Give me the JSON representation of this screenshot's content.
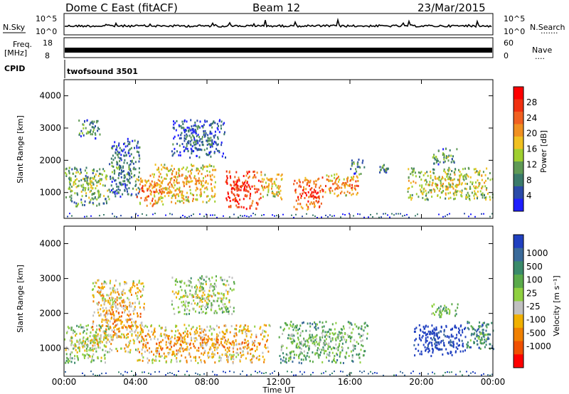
{
  "header": {
    "title": "Dome C East (fitACF)",
    "beam": "Beam 12",
    "date": "23/Mar/2015"
  },
  "sky_panel": {
    "left_label": "N.Sky",
    "left_ticks": [
      "10^5",
      "10^0"
    ],
    "right_ticks": [
      "10^5",
      "10^0"
    ],
    "right_label": "N.Search",
    "right_dots": "·······"
  },
  "freq_panel": {
    "left_label_1": "Freq.",
    "left_label_2": "[MHz]",
    "left_ticks": [
      "18",
      "8"
    ],
    "right_ticks": [
      "60",
      "0"
    ],
    "right_label": "Nave",
    "right_dots": "····"
  },
  "cpid": {
    "label": "CPID",
    "value": "twofsound 3501"
  },
  "chart_data": [
    {
      "type": "heatmap",
      "name": "power",
      "ylabel": "Slant Range [km]",
      "xlabel": "Time UT",
      "xlim": [
        0,
        24
      ],
      "ylim": [
        200,
        4500
      ],
      "x_ticks": [
        "00:00",
        "04:00",
        "08:00",
        "12:00",
        "16:00",
        "20:00",
        "00:00"
      ],
      "y_ticks": [
        1000,
        2000,
        3000,
        4000
      ],
      "colorbar": {
        "label": "Power [dB]",
        "ticks": [
          "4",
          "8",
          "12",
          "16",
          "20",
          "24",
          "28"
        ],
        "colors": [
          "#1e1eff",
          "#2a4aa8",
          "#3a7a6a",
          "#5f9a55",
          "#9fcf30",
          "#f0c020",
          "#f09020",
          "#f06020",
          "#f03010",
          "#ff0000"
        ]
      },
      "regions": [
        {
          "t": [
            0.0,
            2.5
          ],
          "r": [
            600,
            1800
          ],
          "level": 0.45
        },
        {
          "t": [
            0.8,
            2.0
          ],
          "r": [
            2700,
            3300
          ],
          "level": 0.35
        },
        {
          "t": [
            2.5,
            4.2
          ],
          "r": [
            900,
            2700
          ],
          "level": 0.3
        },
        {
          "t": [
            4.0,
            5.5
          ],
          "r": [
            600,
            1600
          ],
          "level": 0.75
        },
        {
          "t": [
            5.0,
            8.5
          ],
          "r": [
            700,
            1900
          ],
          "level": 0.65
        },
        {
          "t": [
            6.0,
            9.0
          ],
          "r": [
            2100,
            3300
          ],
          "level": 0.25
        },
        {
          "t": [
            9.0,
            11.0
          ],
          "r": [
            500,
            1700
          ],
          "level": 0.9
        },
        {
          "t": [
            11.0,
            12.2
          ],
          "r": [
            800,
            1600
          ],
          "level": 0.6
        },
        {
          "t": [
            12.8,
            14.5
          ],
          "r": [
            500,
            1500
          ],
          "level": 0.85
        },
        {
          "t": [
            14.5,
            16.5
          ],
          "r": [
            900,
            1600
          ],
          "level": 0.7
        },
        {
          "t": [
            16.0,
            16.8
          ],
          "r": [
            1600,
            2100
          ],
          "level": 0.3
        },
        {
          "t": [
            17.5,
            18.2
          ],
          "r": [
            1600,
            1900
          ],
          "level": 0.35
        },
        {
          "t": [
            19.2,
            24.0
          ],
          "r": [
            800,
            1800
          ],
          "level": 0.55
        },
        {
          "t": [
            20.5,
            22.0
          ],
          "r": [
            1900,
            2400
          ],
          "level": 0.35
        }
      ]
    },
    {
      "type": "heatmap",
      "name": "velocity",
      "ylabel": "Slant Range [km]",
      "xlabel": "Time UT",
      "xlim": [
        0,
        24
      ],
      "ylim": [
        200,
        4500
      ],
      "x_ticks": [
        "00:00",
        "04:00",
        "08:00",
        "12:00",
        "16:00",
        "20:00",
        "00:00"
      ],
      "y_ticks": [
        1000,
        2000,
        3000,
        4000
      ],
      "colorbar": {
        "label": "Velocity [m s⁻¹]",
        "ticks": [
          "1000",
          "500",
          "100",
          "25",
          "-25",
          "-100",
          "-500",
          "-1000"
        ],
        "colors": [
          "#2040c0",
          "#3a6a9a",
          "#3a8a6a",
          "#5aaa4a",
          "#8fd040",
          "#c0c0c0",
          "#f0b000",
          "#f08000",
          "#f05000",
          "#ff0000"
        ]
      },
      "regions": [
        {
          "t": [
            0.0,
            2.5
          ],
          "r": [
            600,
            1700
          ],
          "level": 0.55
        },
        {
          "t": [
            1.5,
            4.5
          ],
          "r": [
            900,
            3000
          ],
          "level": 0.7
        },
        {
          "t": [
            4.0,
            11.5
          ],
          "r": [
            600,
            1700
          ],
          "level": 0.72
        },
        {
          "t": [
            6.0,
            9.5
          ],
          "r": [
            2000,
            3100
          ],
          "level": 0.55
        },
        {
          "t": [
            12.0,
            17.0
          ],
          "r": [
            600,
            1800
          ],
          "level": 0.45
        },
        {
          "t": [
            19.5,
            22.5
          ],
          "r": [
            800,
            1700
          ],
          "level": 0.05
        },
        {
          "t": [
            22.5,
            24.0
          ],
          "r": [
            1000,
            1800
          ],
          "level": 0.3
        },
        {
          "t": [
            20.5,
            22.0
          ],
          "r": [
            1900,
            2300
          ],
          "level": 0.45
        }
      ]
    }
  ]
}
